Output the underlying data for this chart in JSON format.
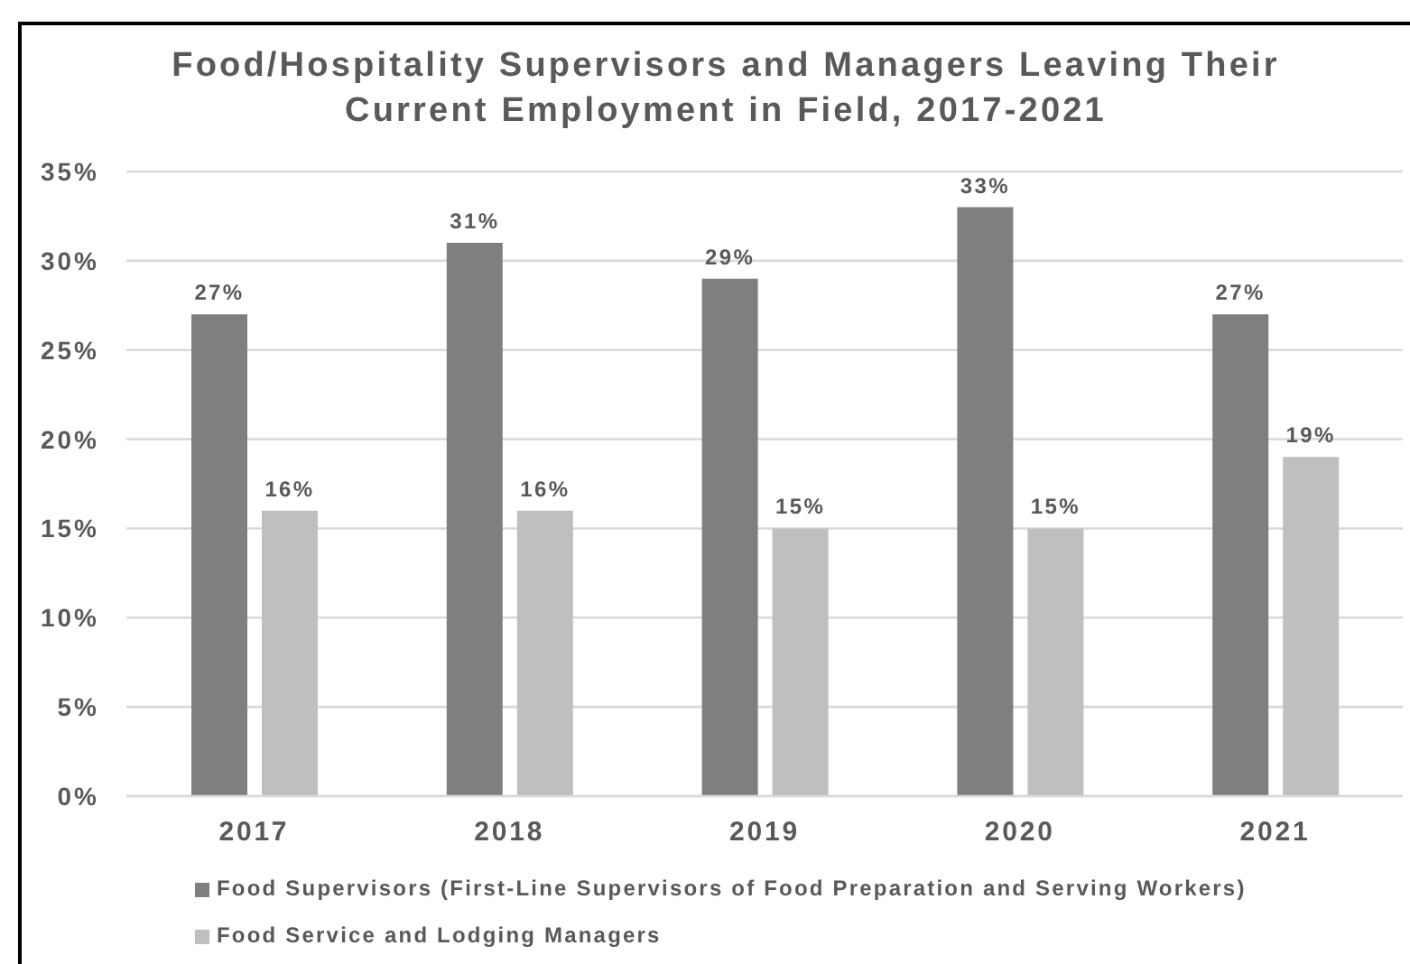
{
  "chart_data": {
    "type": "bar",
    "title": "Food/Hospitality Supervisors and Managers Leaving Their Current Employment in Field, 2017-2021",
    "categories": [
      "2017",
      "2018",
      "2019",
      "2020",
      "2021"
    ],
    "series": [
      {
        "name": "Food Supervisors (First-Line Supervisors of Food Preparation and Serving Workers)",
        "color": "#7f7f7f",
        "values": [
          27,
          31,
          29,
          33,
          27
        ],
        "value_labels": [
          "27%",
          "31%",
          "29%",
          "33%",
          "27%"
        ]
      },
      {
        "name": "Food Service and Lodging Managers",
        "color": "#bfbfbf",
        "values": [
          16,
          16,
          15,
          15,
          19
        ],
        "value_labels": [
          "16%",
          "16%",
          "15%",
          "15%",
          "19%"
        ]
      }
    ],
    "ylim": [
      0,
      35
    ],
    "yticks": [
      {
        "value": 0,
        "label": "0%"
      },
      {
        "value": 5,
        "label": "5%"
      },
      {
        "value": 10,
        "label": "10%"
      },
      {
        "value": 15,
        "label": "15%"
      },
      {
        "value": 20,
        "label": "20%"
      },
      {
        "value": 25,
        "label": "25%"
      },
      {
        "value": 30,
        "label": "30%"
      },
      {
        "value": 35,
        "label": "35%"
      }
    ],
    "grid": "y",
    "legend": "bottom"
  }
}
